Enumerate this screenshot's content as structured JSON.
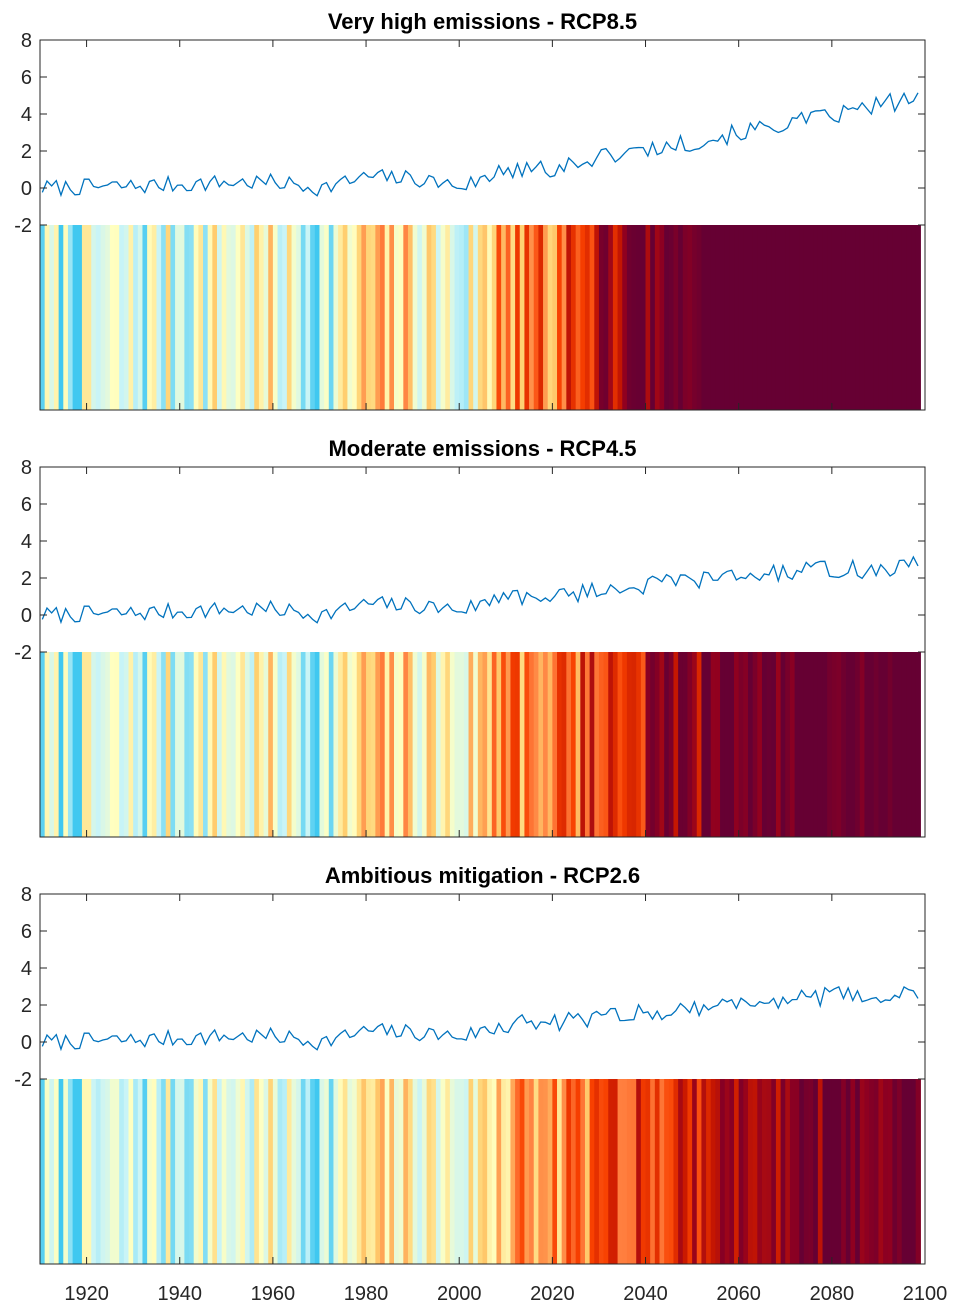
{
  "chart_data": {
    "type": "line",
    "shared_x_ticks": [
      1920,
      1940,
      1960,
      1980,
      2000,
      2020,
      2040,
      2060,
      2080,
      2100
    ],
    "xlim": [
      1910,
      2100
    ],
    "ylim": [
      -2,
      8
    ],
    "y_ticks": [
      -2,
      0,
      2,
      4,
      6,
      8
    ],
    "grid": false,
    "panels": [
      {
        "id": "rcp85",
        "title": "Very high emissions - RCP8.5",
        "series_anchors": {
          "x": [
            1910,
            1930,
            1940,
            1950,
            1960,
            1970,
            1980,
            1990,
            2000,
            2010,
            2020,
            2030,
            2040,
            2050,
            2060,
            2070,
            2080,
            2090,
            2098
          ],
          "y": [
            0.0,
            0.1,
            0.2,
            0.3,
            0.3,
            0.0,
            0.6,
            0.5,
            0.1,
            0.9,
            1.1,
            1.7,
            2.1,
            2.5,
            3.0,
            3.5,
            3.9,
            4.5,
            4.9
          ]
        },
        "stripe_scale": [
          -0.3,
          2.2
        ]
      },
      {
        "id": "rcp45",
        "title": "Moderate emissions - RCP4.5",
        "series_anchors": {
          "x": [
            1910,
            1930,
            1940,
            1950,
            1960,
            1970,
            1980,
            1990,
            2000,
            2010,
            2020,
            2030,
            2040,
            2050,
            2060,
            2070,
            2080,
            2090,
            2098
          ],
          "y": [
            0.0,
            0.1,
            0.2,
            0.3,
            0.3,
            0.0,
            0.6,
            0.5,
            0.3,
            1.0,
            1.0,
            1.4,
            1.6,
            1.9,
            2.1,
            2.3,
            2.5,
            2.4,
            2.7
          ]
        },
        "stripe_scale": [
          -0.3,
          2.2
        ]
      },
      {
        "id": "rcp26",
        "title": "Ambitious mitigation - RCP2.6",
        "series_anchors": {
          "x": [
            1910,
            1930,
            1940,
            1950,
            1960,
            1970,
            1980,
            1990,
            2000,
            2010,
            2020,
            2030,
            2040,
            2050,
            2060,
            2070,
            2080,
            2090,
            2098
          ],
          "y": [
            0.0,
            0.1,
            0.2,
            0.3,
            0.3,
            0.0,
            0.6,
            0.5,
            0.3,
            1.0,
            1.0,
            1.4,
            1.6,
            1.9,
            2.1,
            2.3,
            2.5,
            2.4,
            2.7
          ]
        },
        "stripe_scale": [
          -0.3,
          2.6
        ]
      }
    ],
    "colors": {
      "line": "#0072bd",
      "stripe_ramp": [
        "#40c8f0",
        "#c8f4f8",
        "#ffffc0",
        "#ffd070",
        "#ff8040",
        "#f84000",
        "#c81800",
        "#900020",
        "#660033"
      ]
    }
  }
}
